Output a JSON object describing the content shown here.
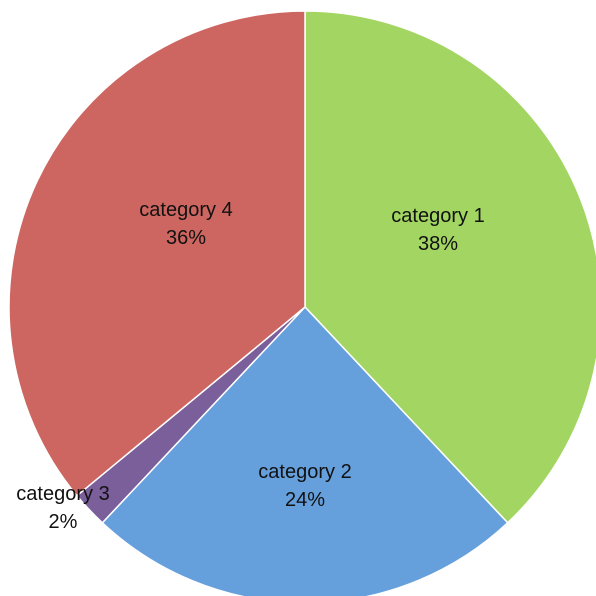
{
  "chart_data": {
    "type": "pie",
    "title": "",
    "start_angle_deg": 0,
    "direction": "clockwise",
    "slices": [
      {
        "name": "category 1",
        "percent_label": "38%",
        "value": 38,
        "color": "#a2d561"
      },
      {
        "name": "category 2",
        "percent_label": "24%",
        "value": 24,
        "color": "#65a0dd"
      },
      {
        "name": "category 3",
        "percent_label": "2%",
        "value": 2,
        "color": "#7a5f9b"
      },
      {
        "name": "category 4",
        "percent_label": "36%",
        "value": 36,
        "color": "#cd6560"
      }
    ],
    "legend": "none"
  }
}
